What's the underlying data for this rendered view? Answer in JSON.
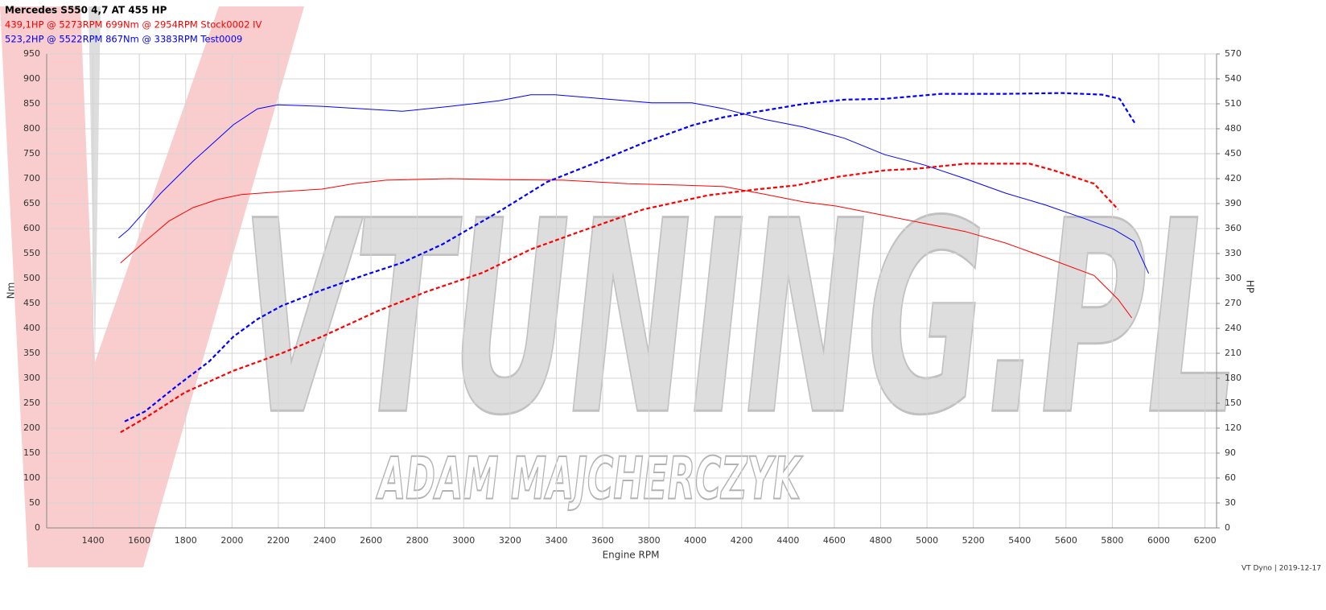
{
  "chart_data": {
    "type": "line",
    "title": "Mercedes S550 4,7 AT 455 HP",
    "legend": [
      {
        "text": "439,1HP @  5273RPM  699Nm @ 2954RPM  Stock0002 IV",
        "color": "#ff0000"
      },
      {
        "text": "523,2HP @  5522RPM  867Nm @ 3383RPM  Test0009",
        "color": "#0000ff"
      }
    ],
    "x_label": "Engine RPM",
    "y_label": "Nm",
    "y2_label": "HP",
    "watermark": [
      "VTUNING.PL",
      "ADAM MAJCHERCZYK"
    ],
    "footer": "VT Dyno | 2019-12-17",
    "xlim": [
      1200,
      6250
    ],
    "xticks": [
      1400,
      1600,
      1800,
      2000,
      2200,
      2400,
      2600,
      2800,
      3000,
      3200,
      3400,
      3600,
      3800,
      4000,
      4200,
      4400,
      4600,
      4800,
      5000,
      5200,
      5400,
      5600,
      5800,
      6000,
      6200
    ],
    "ylim": [
      0,
      950
    ],
    "yticks": [
      0,
      50,
      100,
      150,
      200,
      250,
      300,
      350,
      400,
      450,
      500,
      550,
      600,
      650,
      700,
      750,
      800,
      850,
      900,
      950
    ],
    "y2lim": [
      0,
      570
    ],
    "y2ticks": [
      0,
      30,
      60,
      90,
      120,
      150,
      180,
      210,
      240,
      270,
      300,
      330,
      360,
      390,
      420,
      450,
      480,
      510,
      540,
      570
    ],
    "grid": true,
    "series": [
      {
        "color": "#ff0000",
        "axis": "y",
        "dashed": false,
        "x": [
          1519,
          1624,
          1728,
          1832,
          1936,
          2040,
          2214,
          2388,
          2526,
          2665,
          2943,
          3151,
          3429,
          3707,
          3950,
          4124,
          4297,
          4471,
          4610,
          4818,
          4992,
          5165,
          5339,
          5513,
          5721,
          5825,
          5884
        ],
        "values": [
          531,
          574,
          615,
          642,
          658,
          668,
          674,
          679,
          690,
          697,
          700,
          698,
          697,
          690,
          687,
          684,
          669,
          653,
          645,
          626,
          610,
          594,
          571,
          542,
          506,
          458,
          421
        ]
      },
      {
        "color": "#0000ff",
        "axis": "y",
        "dashed": false,
        "x": [
          1510,
          1554,
          1693,
          1832,
          2006,
          2110,
          2197,
          2388,
          2735,
          2943,
          3151,
          3290,
          3394,
          3603,
          3811,
          3985,
          4124,
          4297,
          4471,
          4644,
          4818,
          4992,
          5165,
          5339,
          5513,
          5686,
          5808,
          5894,
          5957
        ],
        "values": [
          581,
          598,
          671,
          735,
          808,
          840,
          848,
          845,
          835,
          845,
          856,
          868,
          868,
          860,
          852,
          852,
          840,
          819,
          803,
          781,
          748,
          727,
          700,
          671,
          647,
          619,
          598,
          574,
          510
        ]
      },
      {
        "color": "#ff0000",
        "axis": "y2",
        "dashed": true,
        "x": [
          1519,
          1624,
          1797,
          2006,
          2214,
          2388,
          2631,
          2839,
          3082,
          3290,
          3499,
          3776,
          4054,
          4263,
          4436,
          4610,
          4818,
          4957,
          5165,
          5339,
          5443,
          5547,
          5721,
          5825
        ],
        "values": [
          115,
          132,
          163,
          189,
          210,
          230,
          261,
          284,
          307,
          335,
          356,
          383,
          400,
          407,
          412,
          422,
          430,
          432,
          438,
          438,
          438,
          430,
          414,
          383
        ]
      },
      {
        "color": "#0000ff",
        "axis": "y2",
        "dashed": true,
        "x": [
          1537,
          1624,
          1763,
          1901,
          2006,
          2110,
          2214,
          2388,
          2561,
          2735,
          2908,
          3151,
          3360,
          3568,
          3776,
          3985,
          4124,
          4297,
          4471,
          4644,
          4818,
          5061,
          5339,
          5582,
          5756,
          5832,
          5901
        ],
        "values": [
          128,
          140,
          171,
          200,
          230,
          251,
          267,
          286,
          303,
          319,
          341,
          380,
          416,
          439,
          463,
          484,
          494,
          502,
          510,
          515,
          516,
          522,
          522,
          523,
          521,
          516,
          485
        ]
      }
    ]
  }
}
